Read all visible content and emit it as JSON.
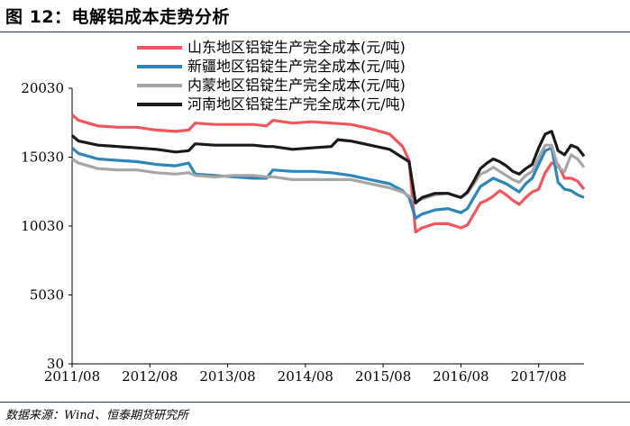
{
  "figure": {
    "title": "图 12：电解铝成本走势分析",
    "source": "数据来源：Wind、恒泰期货研究所"
  },
  "chart_data": {
    "type": "line",
    "title": "",
    "xlabel": "",
    "ylabel": "",
    "ylim": [
      30,
      20030
    ],
    "yticks": [
      30,
      5030,
      10030,
      15030,
      20030
    ],
    "xticks": [
      "2011/08",
      "2012/08",
      "2013/08",
      "2014/08",
      "2015/08",
      "2016/08",
      "2017/08"
    ],
    "xrange": [
      "2011/08",
      "2018/03"
    ],
    "grid": false,
    "legend_position": "top",
    "series": [
      {
        "name": "山东地区铝锭生产完全成本(元/吨)",
        "color": "#f0575d",
        "points": [
          [
            "2011/08",
            18100
          ],
          [
            "2011/09",
            17700
          ],
          [
            "2011/12",
            17300
          ],
          [
            "2012/03",
            17200
          ],
          [
            "2012/06",
            17200
          ],
          [
            "2012/09",
            17000
          ],
          [
            "2012/12",
            16900
          ],
          [
            "2013/02",
            17000
          ],
          [
            "2013/03",
            17500
          ],
          [
            "2013/06",
            17400
          ],
          [
            "2013/09",
            17400
          ],
          [
            "2013/12",
            17400
          ],
          [
            "2014/02",
            17300
          ],
          [
            "2014/03",
            17700
          ],
          [
            "2014/06",
            17500
          ],
          [
            "2014/09",
            17600
          ],
          [
            "2014/12",
            17500
          ],
          [
            "2015/03",
            17400
          ],
          [
            "2015/06",
            17100
          ],
          [
            "2015/09",
            16700
          ],
          [
            "2015/11",
            15800
          ],
          [
            "2015/12",
            14800
          ],
          [
            "2016/01",
            9600
          ],
          [
            "2016/02",
            9900
          ],
          [
            "2016/04",
            10200
          ],
          [
            "2016/06",
            10200
          ],
          [
            "2016/08",
            9900
          ],
          [
            "2016/09",
            10100
          ],
          [
            "2016/10",
            10900
          ],
          [
            "2016/11",
            11700
          ],
          [
            "2016/12",
            11900
          ],
          [
            "2017/01",
            12200
          ],
          [
            "2017/02",
            12600
          ],
          [
            "2017/03",
            12300
          ],
          [
            "2017/04",
            11900
          ],
          [
            "2017/05",
            11600
          ],
          [
            "2017/06",
            12100
          ],
          [
            "2017/07",
            12500
          ],
          [
            "2017/08",
            12700
          ],
          [
            "2017/09",
            13900
          ],
          [
            "2017/10",
            14600
          ],
          [
            "2017/11",
            14500
          ],
          [
            "2017/12",
            13500
          ],
          [
            "2018/01",
            13500
          ],
          [
            "2018/02",
            13300
          ],
          [
            "2018/03",
            12700
          ]
        ]
      },
      {
        "name": "新疆地区铝锭生产完全成本(元/吨)",
        "color": "#2e86b8",
        "points": [
          [
            "2011/08",
            15700
          ],
          [
            "2011/09",
            15300
          ],
          [
            "2011/12",
            14900
          ],
          [
            "2012/03",
            14800
          ],
          [
            "2012/06",
            14700
          ],
          [
            "2012/09",
            14500
          ],
          [
            "2012/12",
            14400
          ],
          [
            "2013/02",
            14600
          ],
          [
            "2013/03",
            13800
          ],
          [
            "2013/06",
            13700
          ],
          [
            "2013/09",
            13600
          ],
          [
            "2013/12",
            13500
          ],
          [
            "2014/02",
            13500
          ],
          [
            "2014/03",
            14100
          ],
          [
            "2014/06",
            14000
          ],
          [
            "2014/09",
            14000
          ],
          [
            "2014/12",
            13900
          ],
          [
            "2015/03",
            13700
          ],
          [
            "2015/06",
            13400
          ],
          [
            "2015/09",
            13100
          ],
          [
            "2015/11",
            12600
          ],
          [
            "2015/12",
            12100
          ],
          [
            "2016/01",
            10600
          ],
          [
            "2016/02",
            10900
          ],
          [
            "2016/04",
            11200
          ],
          [
            "2016/06",
            11300
          ],
          [
            "2016/08",
            11000
          ],
          [
            "2016/09",
            11300
          ],
          [
            "2016/10",
            12100
          ],
          [
            "2016/11",
            12900
          ],
          [
            "2016/12",
            13200
          ],
          [
            "2017/01",
            13500
          ],
          [
            "2017/02",
            13300
          ],
          [
            "2017/03",
            13100
          ],
          [
            "2017/04",
            12800
          ],
          [
            "2017/05",
            12500
          ],
          [
            "2017/06",
            13100
          ],
          [
            "2017/07",
            13500
          ],
          [
            "2017/08",
            14500
          ],
          [
            "2017/09",
            15500
          ],
          [
            "2017/10",
            15700
          ],
          [
            "2017/11",
            13200
          ],
          [
            "2017/12",
            12700
          ],
          [
            "2018/01",
            12600
          ],
          [
            "2018/02",
            12300
          ],
          [
            "2018/03",
            12100
          ]
        ]
      },
      {
        "name": "内蒙地区铝锭生产完全成本(元/吨)",
        "color": "#a6a6a6",
        "points": [
          [
            "2011/08",
            14900
          ],
          [
            "2011/09",
            14600
          ],
          [
            "2011/12",
            14200
          ],
          [
            "2012/03",
            14100
          ],
          [
            "2012/06",
            14100
          ],
          [
            "2012/09",
            13900
          ],
          [
            "2012/12",
            13800
          ],
          [
            "2013/02",
            13900
          ],
          [
            "2013/03",
            13700
          ],
          [
            "2013/06",
            13600
          ],
          [
            "2013/09",
            13700
          ],
          [
            "2013/12",
            13700
          ],
          [
            "2014/02",
            13600
          ],
          [
            "2014/03",
            13600
          ],
          [
            "2014/06",
            13400
          ],
          [
            "2014/09",
            13400
          ],
          [
            "2014/12",
            13400
          ],
          [
            "2015/03",
            13400
          ],
          [
            "2015/06",
            13100
          ],
          [
            "2015/09",
            12800
          ],
          [
            "2015/11",
            12500
          ],
          [
            "2015/12",
            12200
          ],
          [
            "2016/01",
            11800
          ],
          [
            "2016/02",
            12000
          ],
          [
            "2016/04",
            12300
          ],
          [
            "2016/06",
            12400
          ],
          [
            "2016/08",
            12100
          ],
          [
            "2016/09",
            12400
          ],
          [
            "2016/10",
            13100
          ],
          [
            "2016/11",
            13800
          ],
          [
            "2016/12",
            14000
          ],
          [
            "2017/01",
            14300
          ],
          [
            "2017/02",
            14000
          ],
          [
            "2017/03",
            13700
          ],
          [
            "2017/04",
            13400
          ],
          [
            "2017/05",
            13200
          ],
          [
            "2017/06",
            13700
          ],
          [
            "2017/07",
            14000
          ],
          [
            "2017/08",
            15000
          ],
          [
            "2017/09",
            15900
          ],
          [
            "2017/10",
            15900
          ],
          [
            "2017/11",
            14300
          ],
          [
            "2017/12",
            14000
          ],
          [
            "2018/01",
            15200
          ],
          [
            "2018/02",
            14900
          ],
          [
            "2018/03",
            14300
          ]
        ]
      },
      {
        "name": "河南地区铝锭生产完全成本(元/吨)",
        "color": "#1a1a1a",
        "points": [
          [
            "2011/08",
            16600
          ],
          [
            "2011/09",
            16200
          ],
          [
            "2011/12",
            15900
          ],
          [
            "2012/03",
            15800
          ],
          [
            "2012/06",
            15700
          ],
          [
            "2012/09",
            15600
          ],
          [
            "2012/12",
            15400
          ],
          [
            "2013/02",
            15500
          ],
          [
            "2013/03",
            16000
          ],
          [
            "2013/06",
            15900
          ],
          [
            "2013/09",
            15900
          ],
          [
            "2013/12",
            15900
          ],
          [
            "2014/02",
            15800
          ],
          [
            "2014/03",
            15800
          ],
          [
            "2014/06",
            15600
          ],
          [
            "2014/09",
            15700
          ],
          [
            "2014/12",
            15800
          ],
          [
            "2015/01",
            16300
          ],
          [
            "2015/03",
            16200
          ],
          [
            "2015/06",
            15900
          ],
          [
            "2015/09",
            15600
          ],
          [
            "2015/11",
            15000
          ],
          [
            "2015/12",
            14700
          ],
          [
            "2016/01",
            11700
          ],
          [
            "2016/02",
            12100
          ],
          [
            "2016/04",
            12400
          ],
          [
            "2016/06",
            12400
          ],
          [
            "2016/08",
            12100
          ],
          [
            "2016/09",
            12500
          ],
          [
            "2016/10",
            13300
          ],
          [
            "2016/11",
            14200
          ],
          [
            "2016/12",
            14600
          ],
          [
            "2017/01",
            14900
          ],
          [
            "2017/02",
            14700
          ],
          [
            "2017/03",
            14400
          ],
          [
            "2017/04",
            14000
          ],
          [
            "2017/05",
            13800
          ],
          [
            "2017/06",
            14200
          ],
          [
            "2017/07",
            14500
          ],
          [
            "2017/08",
            15700
          ],
          [
            "2017/09",
            16700
          ],
          [
            "2017/10",
            16900
          ],
          [
            "2017/11",
            15500
          ],
          [
            "2017/12",
            15200
          ],
          [
            "2018/01",
            15900
          ],
          [
            "2018/02",
            15700
          ],
          [
            "2018/03",
            15100
          ]
        ]
      }
    ]
  }
}
